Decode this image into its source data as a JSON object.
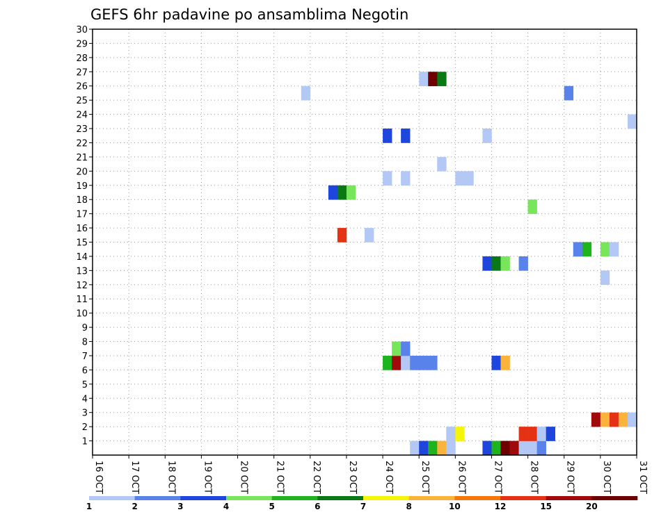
{
  "chart_data": {
    "type": "heatmap",
    "title": "GEFS 6hr padavine po ansamblima Negotin",
    "xlabel": "",
    "ylabel": "",
    "x_ticks": [
      "16 OCT",
      "17 OCT",
      "18 OCT",
      "19 OCT",
      "20 OCT",
      "21 OCT",
      "22 OCT",
      "23 OCT",
      "24 OCT",
      "25 OCT",
      "26 OCT",
      "27 OCT",
      "28 OCT",
      "29 OCT",
      "30 OCT",
      "31 OCT"
    ],
    "y_ticks": [
      "1",
      "2",
      "3",
      "4",
      "5",
      "6",
      "7",
      "8",
      "9",
      "10",
      "11",
      "12",
      "13",
      "14",
      "15",
      "16",
      "17",
      "18",
      "19",
      "20",
      "21",
      "22",
      "23",
      "24",
      "25",
      "26",
      "27",
      "28",
      "29",
      "30"
    ],
    "x_range_days": [
      0,
      15
    ],
    "y_range": [
      0,
      30
    ],
    "time_step_hours": 6,
    "grid": true,
    "legend": {
      "placement": "bottom",
      "labels": [
        "1",
        "2",
        "3",
        "4",
        "5",
        "6",
        "7",
        "8",
        "10",
        "12",
        "15",
        "20"
      ],
      "colors": [
        "#b4c8f5",
        "#5a82eb",
        "#1e46dc",
        "#78e65a",
        "#1eb41e",
        "#0a7814",
        "#f5f50a",
        "#fab43c",
        "#f5780a",
        "#e63214",
        "#a00a0a",
        "#6e0000"
      ]
    },
    "cells": [
      {
        "member": 0,
        "step": 35,
        "level": 0
      },
      {
        "member": 0,
        "step": 36,
        "level": 2
      },
      {
        "member": 0,
        "step": 37,
        "level": 4
      },
      {
        "member": 0,
        "step": 38,
        "level": 7
      },
      {
        "member": 0,
        "step": 39,
        "level": 0
      },
      {
        "member": 0,
        "step": 43,
        "level": 2
      },
      {
        "member": 0,
        "step": 44,
        "level": 4
      },
      {
        "member": 0,
        "step": 45,
        "level": 11
      },
      {
        "member": 0,
        "step": 46,
        "level": 10
      },
      {
        "member": 0,
        "step": 47,
        "level": 0
      },
      {
        "member": 0,
        "step": 48,
        "level": 0
      },
      {
        "member": 0,
        "step": 49,
        "level": 1
      },
      {
        "member": 1,
        "step": 39,
        "level": 0
      },
      {
        "member": 1,
        "step": 40,
        "level": 6
      },
      {
        "member": 1,
        "step": 47,
        "level": 9
      },
      {
        "member": 1,
        "step": 48,
        "level": 9
      },
      {
        "member": 1,
        "step": 49,
        "level": 0
      },
      {
        "member": 1,
        "step": 50,
        "level": 2
      },
      {
        "member": 2,
        "step": 55,
        "level": 10
      },
      {
        "member": 2,
        "step": 56,
        "level": 7
      },
      {
        "member": 2,
        "step": 57,
        "level": 9
      },
      {
        "member": 2,
        "step": 58,
        "level": 7
      },
      {
        "member": 2,
        "step": 59,
        "level": 0
      },
      {
        "member": 6,
        "step": 32,
        "level": 4
      },
      {
        "member": 6,
        "step": 33,
        "level": 10
      },
      {
        "member": 6,
        "step": 34,
        "level": 0
      },
      {
        "member": 6,
        "step": 35,
        "level": 1
      },
      {
        "member": 6,
        "step": 36,
        "level": 1
      },
      {
        "member": 6,
        "step": 37,
        "level": 1
      },
      {
        "member": 6,
        "step": 44,
        "level": 2
      },
      {
        "member": 6,
        "step": 45,
        "level": 7
      },
      {
        "member": 7,
        "step": 33,
        "level": 3
      },
      {
        "member": 7,
        "step": 34,
        "level": 1
      },
      {
        "member": 12,
        "step": 56,
        "level": 0
      },
      {
        "member": 13,
        "step": 43,
        "level": 2
      },
      {
        "member": 13,
        "step": 44,
        "level": 5
      },
      {
        "member": 13,
        "step": 45,
        "level": 3
      },
      {
        "member": 13,
        "step": 47,
        "level": 1
      },
      {
        "member": 14,
        "step": 53,
        "level": 1
      },
      {
        "member": 14,
        "step": 54,
        "level": 4
      },
      {
        "member": 14,
        "step": 56,
        "level": 3
      },
      {
        "member": 14,
        "step": 57,
        "level": 0
      },
      {
        "member": 15,
        "step": 27,
        "level": 9
      },
      {
        "member": 15,
        "step": 30,
        "level": 0
      },
      {
        "member": 17,
        "step": 48,
        "level": 3
      },
      {
        "member": 18,
        "step": 26,
        "level": 2
      },
      {
        "member": 18,
        "step": 27,
        "level": 5
      },
      {
        "member": 18,
        "step": 28,
        "level": 3
      },
      {
        "member": 19,
        "step": 32,
        "level": 0
      },
      {
        "member": 19,
        "step": 34,
        "level": 0
      },
      {
        "member": 19,
        "step": 40,
        "level": 0
      },
      {
        "member": 19,
        "step": 41,
        "level": 0
      },
      {
        "member": 20,
        "step": 38,
        "level": 0
      },
      {
        "member": 22,
        "step": 32,
        "level": 2
      },
      {
        "member": 22,
        "step": 34,
        "level": 2
      },
      {
        "member": 22,
        "step": 43,
        "level": 0
      },
      {
        "member": 23,
        "step": 59,
        "level": 0
      },
      {
        "member": 25,
        "step": 23,
        "level": 0
      },
      {
        "member": 25,
        "step": 52,
        "level": 1
      },
      {
        "member": 26,
        "step": 36,
        "level": 0
      },
      {
        "member": 26,
        "step": 37,
        "level": 11
      },
      {
        "member": 26,
        "step": 38,
        "level": 5
      }
    ]
  }
}
